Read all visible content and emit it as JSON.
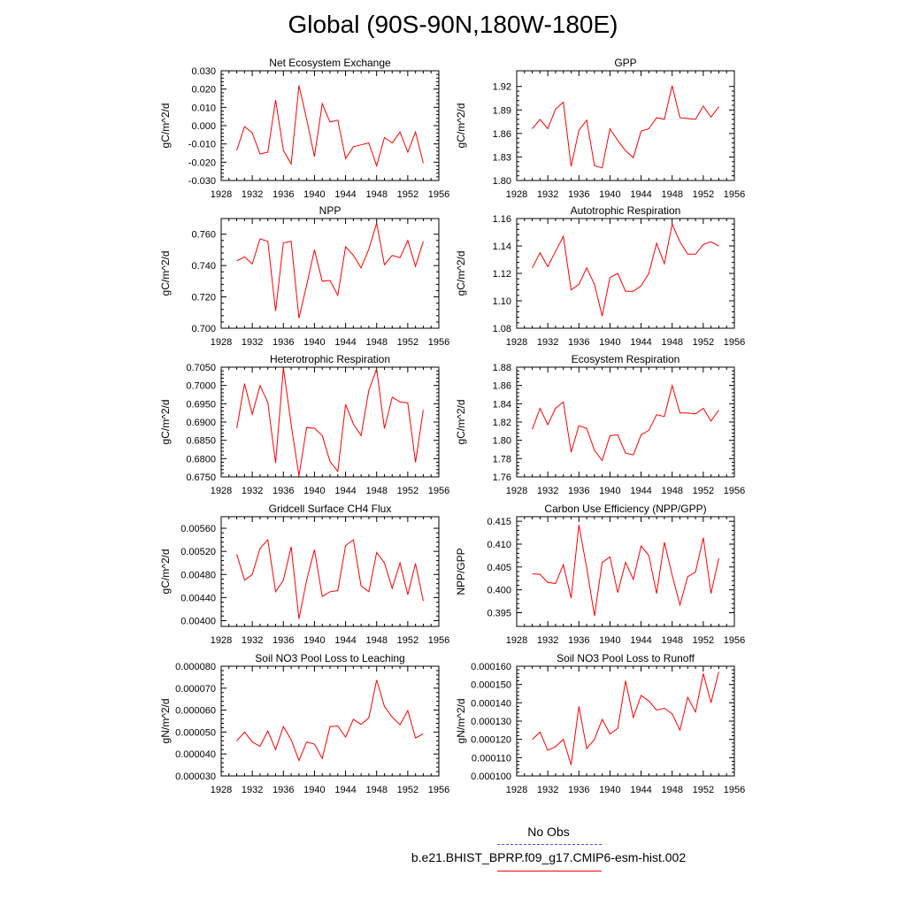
{
  "figure_title": "Global (90S-90N,180W-180E)",
  "legend": {
    "obs_label": "No Obs",
    "obs_color": "#4a4aff",
    "model_label": "b.e21.BHIST_BPRP.f09_g17.CMIP6-esm-hist.002",
    "model_color": "#ff0000"
  },
  "chart_data": [
    {
      "type": "line",
      "title": "Net Ecosystem Exchange",
      "ylabel": "gC/m^2/d",
      "xlim": [
        1928,
        1956
      ],
      "xticks": [
        1928,
        1932,
        1936,
        1940,
        1944,
        1948,
        1952,
        1956
      ],
      "ylim": [
        -0.03,
        0.03
      ],
      "yticks": [
        -0.03,
        -0.02,
        -0.01,
        0.0,
        0.01,
        0.02,
        0.03
      ],
      "ytick_labels": [
        "-0.030",
        "-0.020",
        "-0.010",
        "0.000",
        "0.010",
        "0.020",
        "0.030"
      ],
      "x": [
        1930,
        1931,
        1932,
        1933,
        1934,
        1935,
        1936,
        1937,
        1938,
        1939,
        1940,
        1941,
        1942,
        1943,
        1944,
        1945,
        1946,
        1947,
        1948,
        1949,
        1950,
        1951,
        1952,
        1953,
        1954
      ],
      "series": [
        {
          "name": "b.e21.BHIST_BPRP.f09_g17.CMIP6-esm-hist.002",
          "values": [
            -0.0135,
            -0.0005,
            -0.004,
            -0.0155,
            -0.0145,
            0.014,
            -0.0135,
            -0.021,
            0.022,
            0.0035,
            -0.017,
            0.012,
            0.002,
            0.003,
            -0.018,
            -0.0115,
            -0.0105,
            -0.0095,
            -0.022,
            -0.0065,
            -0.0095,
            -0.0035,
            -0.0145,
            -0.0035,
            -0.0205
          ]
        }
      ]
    },
    {
      "type": "line",
      "title": "GPP",
      "ylabel": "gC/m^2/d",
      "xlim": [
        1928,
        1956
      ],
      "xticks": [
        1928,
        1932,
        1936,
        1940,
        1944,
        1948,
        1952,
        1956
      ],
      "ylim": [
        1.8,
        1.94
      ],
      "yticks": [
        1.8,
        1.83,
        1.86,
        1.89,
        1.92
      ],
      "ytick_labels": [
        "1.80",
        "1.83",
        "1.86",
        "1.89",
        "1.92"
      ],
      "x": [
        1930,
        1931,
        1932,
        1933,
        1934,
        1935,
        1936,
        1937,
        1938,
        1939,
        1940,
        1941,
        1942,
        1943,
        1944,
        1945,
        1946,
        1947,
        1948,
        1949,
        1950,
        1951,
        1952,
        1953,
        1954
      ],
      "series": [
        {
          "name": "b.e21.BHIST_BPRP.f09_g17.CMIP6-esm-hist.002",
          "values": [
            1.866,
            1.878,
            1.866,
            1.891,
            1.9,
            1.818,
            1.864,
            1.877,
            1.819,
            1.816,
            1.866,
            1.851,
            1.838,
            1.829,
            1.863,
            1.866,
            1.88,
            1.878,
            1.921,
            1.88,
            1.879,
            1.878,
            1.895,
            1.881,
            1.894
          ]
        }
      ]
    },
    {
      "type": "line",
      "title": "NPP",
      "ylabel": "gC/m^2/d",
      "xlim": [
        1928,
        1956
      ],
      "xticks": [
        1928,
        1932,
        1936,
        1940,
        1944,
        1948,
        1952,
        1956
      ],
      "ylim": [
        0.7,
        0.77
      ],
      "yticks": [
        0.7,
        0.72,
        0.74,
        0.76
      ],
      "ytick_labels": [
        "0.700",
        "0.720",
        "0.740",
        "0.760"
      ],
      "x": [
        1930,
        1931,
        1932,
        1933,
        1934,
        1935,
        1936,
        1937,
        1938,
        1939,
        1940,
        1941,
        1942,
        1943,
        1944,
        1945,
        1946,
        1947,
        1948,
        1949,
        1950,
        1951,
        1952,
        1953,
        1954
      ],
      "series": [
        {
          "name": "b.e21.BHIST_BPRP.f09_g17.CMIP6-esm-hist.002",
          "values": [
            0.743,
            0.7455,
            0.741,
            0.757,
            0.7555,
            0.711,
            0.7545,
            0.7555,
            0.7065,
            0.7275,
            0.75,
            0.73,
            0.7305,
            0.721,
            0.752,
            0.7465,
            0.7385,
            0.7505,
            0.767,
            0.7405,
            0.7465,
            0.745,
            0.756,
            0.7395,
            0.7555
          ]
        }
      ]
    },
    {
      "type": "line",
      "title": "Autotrophic Respiration",
      "ylabel": "gC/m^2/d",
      "xlim": [
        1928,
        1956
      ],
      "xticks": [
        1928,
        1932,
        1936,
        1940,
        1944,
        1948,
        1952,
        1956
      ],
      "ylim": [
        1.08,
        1.16
      ],
      "yticks": [
        1.08,
        1.1,
        1.12,
        1.14,
        1.16
      ],
      "ytick_labels": [
        "1.08",
        "1.10",
        "1.12",
        "1.14",
        "1.16"
      ],
      "x": [
        1930,
        1931,
        1932,
        1933,
        1934,
        1935,
        1936,
        1937,
        1938,
        1939,
        1940,
        1941,
        1942,
        1943,
        1944,
        1945,
        1946,
        1947,
        1948,
        1949,
        1950,
        1951,
        1952,
        1953,
        1954
      ],
      "series": [
        {
          "name": "b.e21.BHIST_BPRP.f09_g17.CMIP6-esm-hist.002",
          "values": [
            1.124,
            1.135,
            1.125,
            1.136,
            1.147,
            1.108,
            1.112,
            1.124,
            1.112,
            1.089,
            1.117,
            1.12,
            1.107,
            1.107,
            1.111,
            1.12,
            1.142,
            1.127,
            1.156,
            1.143,
            1.134,
            1.134,
            1.141,
            1.143,
            1.14
          ]
        }
      ]
    },
    {
      "type": "line",
      "title": "Heterotrophic Respiration",
      "ylabel": "gC/m^2/d",
      "xlim": [
        1928,
        1956
      ],
      "xticks": [
        1928,
        1932,
        1936,
        1940,
        1944,
        1948,
        1952,
        1956
      ],
      "ylim": [
        0.675,
        0.705
      ],
      "yticks": [
        0.675,
        0.68,
        0.685,
        0.69,
        0.695,
        0.7,
        0.705
      ],
      "ytick_labels": [
        "0.6750",
        "0.6800",
        "0.6850",
        "0.6900",
        "0.6950",
        "0.7000",
        "0.7050"
      ],
      "x": [
        1930,
        1931,
        1932,
        1933,
        1934,
        1935,
        1936,
        1937,
        1938,
        1939,
        1940,
        1941,
        1942,
        1943,
        1944,
        1945,
        1946,
        1947,
        1948,
        1949,
        1950,
        1951,
        1952,
        1953,
        1954
      ],
      "series": [
        {
          "name": "b.e21.BHIST_BPRP.f09_g17.CMIP6-esm-hist.002",
          "values": [
            0.6883,
            0.7005,
            0.6921,
            0.7,
            0.6953,
            0.6788,
            0.7048,
            0.6893,
            0.6753,
            0.6885,
            0.6883,
            0.6863,
            0.6792,
            0.6765,
            0.6948,
            0.6895,
            0.6863,
            0.6987,
            0.7045,
            0.6882,
            0.6968,
            0.6955,
            0.6952,
            0.679,
            0.6933
          ]
        }
      ]
    },
    {
      "type": "line",
      "title": "Ecosystem Respiration",
      "ylabel": "gC/m^2/d",
      "xlim": [
        1928,
        1956
      ],
      "xticks": [
        1928,
        1932,
        1936,
        1940,
        1944,
        1948,
        1952,
        1956
      ],
      "ylim": [
        1.76,
        1.88
      ],
      "yticks": [
        1.76,
        1.78,
        1.8,
        1.82,
        1.84,
        1.86,
        1.88
      ],
      "ytick_labels": [
        "1.76",
        "1.78",
        "1.80",
        "1.82",
        "1.84",
        "1.86",
        "1.88"
      ],
      "x": [
        1930,
        1931,
        1932,
        1933,
        1934,
        1935,
        1936,
        1937,
        1938,
        1939,
        1940,
        1941,
        1942,
        1943,
        1944,
        1945,
        1946,
        1947,
        1948,
        1949,
        1950,
        1951,
        1952,
        1953,
        1954
      ],
      "series": [
        {
          "name": "b.e21.BHIST_BPRP.f09_g17.CMIP6-esm-hist.002",
          "values": [
            1.812,
            1.835,
            1.817,
            1.835,
            1.842,
            1.787,
            1.816,
            1.813,
            1.789,
            1.778,
            1.805,
            1.806,
            1.786,
            1.784,
            1.806,
            1.811,
            1.828,
            1.826,
            1.86,
            1.83,
            1.83,
            1.829,
            1.835,
            1.821,
            1.833
          ]
        }
      ]
    },
    {
      "type": "line",
      "title": "Gridcell Surface CH4 Flux",
      "ylabel": "gC/m^2/d",
      "xlim": [
        1928,
        1956
      ],
      "xticks": [
        1928,
        1932,
        1936,
        1940,
        1944,
        1948,
        1952,
        1956
      ],
      "ylim": [
        0.0039,
        0.0058
      ],
      "yticks": [
        0.004,
        0.0044,
        0.0048,
        0.0052,
        0.0056
      ],
      "ytick_labels": [
        "0.00400",
        "0.00440",
        "0.00480",
        "0.00520",
        "0.00560"
      ],
      "x": [
        1930,
        1931,
        1932,
        1933,
        1934,
        1935,
        1936,
        1937,
        1938,
        1939,
        1940,
        1941,
        1942,
        1943,
        1944,
        1945,
        1946,
        1947,
        1948,
        1949,
        1950,
        1951,
        1952,
        1953,
        1954
      ],
      "series": [
        {
          "name": "b.e21.BHIST_BPRP.f09_g17.CMIP6-esm-hist.002",
          "values": [
            0.00515,
            0.0047,
            0.0048,
            0.00525,
            0.0054,
            0.0045,
            0.0047,
            0.00528,
            0.00403,
            0.0047,
            0.00523,
            0.00442,
            0.0045,
            0.00452,
            0.0053,
            0.0054,
            0.0046,
            0.0045,
            0.00518,
            0.005,
            0.00456,
            0.005,
            0.00445,
            0.00499,
            0.00434
          ]
        }
      ]
    },
    {
      "type": "line",
      "title": "Carbon Use Efficiency (NPP/GPP)",
      "ylabel": "NPP/GPP",
      "xlim": [
        1928,
        1956
      ],
      "xticks": [
        1928,
        1932,
        1936,
        1940,
        1944,
        1948,
        1952,
        1956
      ],
      "ylim": [
        0.392,
        0.416
      ],
      "yticks": [
        0.395,
        0.4,
        0.405,
        0.41,
        0.415
      ],
      "ytick_labels": [
        "0.395",
        "0.400",
        "0.405",
        "0.410",
        "0.415"
      ],
      "x": [
        1930,
        1931,
        1932,
        1933,
        1934,
        1935,
        1936,
        1937,
        1938,
        1939,
        1940,
        1941,
        1942,
        1943,
        1944,
        1945,
        1946,
        1947,
        1948,
        1949,
        1950,
        1951,
        1952,
        1953,
        1954
      ],
      "series": [
        {
          "name": "b.e21.BHIST_BPRP.f09_g17.CMIP6-esm-hist.002",
          "values": [
            0.4035,
            0.4034,
            0.4016,
            0.4014,
            0.4055,
            0.3982,
            0.4142,
            0.4048,
            0.3943,
            0.406,
            0.4072,
            0.3994,
            0.406,
            0.4023,
            0.4096,
            0.4075,
            0.3992,
            0.4104,
            0.4032,
            0.3967,
            0.4029,
            0.4039,
            0.4114,
            0.3992,
            0.4069
          ]
        }
      ]
    },
    {
      "type": "line",
      "title": "Soil NO3 Pool Loss to Leaching",
      "ylabel": "gN/m^2/d",
      "xlim": [
        1928,
        1956
      ],
      "xticks": [
        1928,
        1932,
        1936,
        1940,
        1944,
        1948,
        1952,
        1956
      ],
      "ylim": [
        3e-05,
        8e-05
      ],
      "yticks": [
        3e-05,
        4e-05,
        5e-05,
        6e-05,
        7e-05,
        8e-05
      ],
      "ytick_labels": [
        "0.000030",
        "0.000040",
        "0.000050",
        "0.000060",
        "0.000070",
        "0.000080"
      ],
      "x": [
        1930,
        1931,
        1932,
        1933,
        1934,
        1935,
        1936,
        1937,
        1938,
        1939,
        1940,
        1941,
        1942,
        1943,
        1944,
        1945,
        1946,
        1947,
        1948,
        1949,
        1950,
        1951,
        1952,
        1953,
        1954
      ],
      "series": [
        {
          "name": "b.e21.BHIST_BPRP.f09_g17.CMIP6-esm-hist.002",
          "values": [
            4.6e-05,
            5e-05,
            4.55e-05,
            4.35e-05,
            5.05e-05,
            4.2e-05,
            5.25e-05,
            4.65e-05,
            3.7e-05,
            4.55e-05,
            4.45e-05,
            3.8e-05,
            5.25e-05,
            5.28e-05,
            4.77e-05,
            5.58e-05,
            5.35e-05,
            5.65e-05,
            7.37e-05,
            6.17e-05,
            5.68e-05,
            5.33e-05,
            5.98e-05,
            4.73e-05,
            4.92e-05
          ]
        }
      ]
    },
    {
      "type": "line",
      "title": "Soil NO3 Pool Loss to Runoff",
      "ylabel": "gN/m^2/d",
      "xlim": [
        1928,
        1956
      ],
      "xticks": [
        1928,
        1932,
        1936,
        1940,
        1944,
        1948,
        1952,
        1956
      ],
      "ylim": [
        0.0001,
        0.00016
      ],
      "yticks": [
        0.0001,
        0.00011,
        0.00012,
        0.00013,
        0.00014,
        0.00015,
        0.00016
      ],
      "ytick_labels": [
        "0.000100",
        "0.000110",
        "0.000120",
        "0.000130",
        "0.000140",
        "0.000150",
        "0.000160"
      ],
      "x": [
        1930,
        1931,
        1932,
        1933,
        1934,
        1935,
        1936,
        1937,
        1938,
        1939,
        1940,
        1941,
        1942,
        1943,
        1944,
        1945,
        1946,
        1947,
        1948,
        1949,
        1950,
        1951,
        1952,
        1953,
        1954
      ],
      "series": [
        {
          "name": "b.e21.BHIST_BPRP.f09_g17.CMIP6-esm-hist.002",
          "values": [
            0.00012,
            0.000124,
            0.000114,
            0.000116,
            0.00012,
            0.000106,
            0.000138,
            0.000115,
            0.00012,
            0.000131,
            0.000123,
            0.000126,
            0.000152,
            0.000132,
            0.000144,
            0.000141,
            0.000136,
            0.000137,
            0.000134,
            0.000125,
            0.000143,
            0.000135,
            0.000156,
            0.00014,
            0.000157
          ]
        }
      ]
    }
  ]
}
